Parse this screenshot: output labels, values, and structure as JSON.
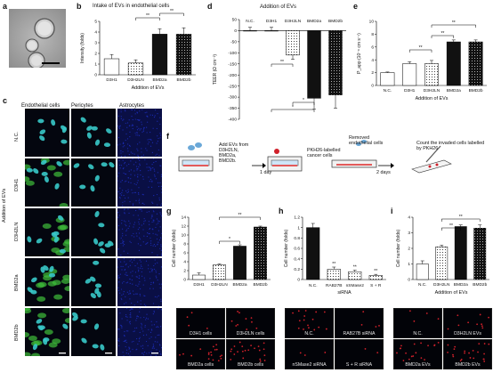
{
  "panels": {
    "a": {
      "label": "a"
    },
    "b": {
      "label": "b",
      "title": "Intake of EVs in endothelial cells"
    },
    "c": {
      "label": "c",
      "columns": [
        "Endothelial cells",
        "Pericytes",
        "Astrocytes"
      ],
      "rows": [
        "N.C.",
        "D3H1",
        "D3H2LN",
        "BMD2a",
        "BMD2b"
      ],
      "side_label": "Addition of EVs"
    },
    "d": {
      "label": "d",
      "title": "Addition of EVs"
    },
    "e": {
      "label": "e"
    },
    "f": {
      "label": "f",
      "step1": "Add EVs from D3H2LN, BMD2a, BMD2b.",
      "arrow1": "1 day",
      "step2": "PKH26-labelled cancer cells",
      "step3": "Removed endothelial cells",
      "arrow2": "2 days",
      "step4": "Count the invaded cells labelled by PKH26"
    },
    "g": {
      "label": "g",
      "images": [
        "D3H1 cells",
        "D3H2LN cells",
        "BMD2a cells",
        "BMD2b cells"
      ]
    },
    "h": {
      "label": "h",
      "images": [
        "N.C.",
        "RAB27B siRNA",
        "nSMase2 siRNA",
        "S + R siRNA"
      ]
    },
    "i": {
      "label": "i",
      "images": [
        "N.C.",
        "D3H2LN EVs",
        "BMD2a EVs",
        "BMD2b EVs"
      ]
    }
  },
  "colors": {
    "bar_black": "#111111",
    "bar_white": "#ffffff",
    "cell_cyan": "#39c9c9",
    "cell_green": "#3fbf3a",
    "astro_blue": "#1b2bb0",
    "pkh_red": "#d0202a"
  },
  "chart_data": [
    {
      "id": "b",
      "type": "bar",
      "categories": [
        "D3H1",
        "D3H2LN",
        "BMD2a",
        "BMD2b"
      ],
      "values": [
        1.5,
        1.1,
        3.8,
        3.8
      ],
      "errors": [
        0.4,
        0.3,
        0.5,
        0.6
      ],
      "ylabel": "Intensity (folds)",
      "xlabel": "Addition of EVs",
      "ylim": [
        0,
        5
      ],
      "yticks": [
        0,
        1,
        2,
        3,
        4,
        5
      ],
      "significance": [
        "**",
        "**"
      ]
    },
    {
      "id": "d",
      "type": "bar",
      "categories": [
        "N.C.",
        "D3H1",
        "D3H2LN",
        "BMD2a",
        "BMD2b"
      ],
      "values": [
        0,
        0,
        -110,
        -305,
        -290
      ],
      "errors": [
        15,
        15,
        20,
        50,
        60
      ],
      "ylabel": "TEER (Ω cm⁻²)",
      "ylim": [
        -400,
        50
      ],
      "yticks": [
        50,
        0,
        -50,
        -100,
        -150,
        -200,
        -250,
        -300,
        -350,
        -400
      ],
      "significance": [
        "**",
        "*",
        "*"
      ]
    },
    {
      "id": "e",
      "type": "bar",
      "categories": [
        "N.C.",
        "D3H1",
        "D3H2LN",
        "BMD2a",
        "BMD2b"
      ],
      "values": [
        2.0,
        3.4,
        3.4,
        6.8,
        6.8
      ],
      "errors": [
        0.1,
        0.3,
        0.5,
        0.3,
        0.3
      ],
      "ylabel": "P_app (10⁻⁶ cm s⁻¹)",
      "xlabel": "Addition of EVs",
      "ylim": [
        0,
        10
      ],
      "yticks": [
        0,
        2,
        4,
        6,
        8,
        10
      ],
      "significance": [
        "**",
        "**",
        "**"
      ]
    },
    {
      "id": "g",
      "type": "bar",
      "categories": [
        "D3H1",
        "D3H2LN",
        "BMD2a",
        "BMD2b"
      ],
      "values": [
        1.0,
        3.3,
        7.5,
        11.8
      ],
      "errors": [
        0.5,
        0.2,
        0.3,
        0.2
      ],
      "ylabel": "Cell number (folds)",
      "ylim": [
        0,
        14
      ],
      "yticks": [
        0,
        2,
        4,
        6,
        8,
        10,
        12,
        14
      ],
      "significance": [
        "*",
        "**"
      ]
    },
    {
      "id": "h",
      "type": "bar",
      "categories": [
        "N.C.",
        "RAB27B",
        "nSMase2",
        "S + R"
      ],
      "values": [
        1.0,
        0.2,
        0.15,
        0.08
      ],
      "errors": [
        0.08,
        0.04,
        0.03,
        0.02
      ],
      "ylabel": "Cell number (folds)",
      "xlabel": "siRNA",
      "ylim": [
        0,
        1.2
      ],
      "yticks": [
        0,
        0.2,
        0.4,
        0.6,
        0.8,
        1.0,
        1.2
      ],
      "significance": [
        "**",
        "**",
        "**"
      ]
    },
    {
      "id": "i",
      "type": "bar",
      "categories": [
        "N.C.",
        "D3H2LN",
        "BMD2a",
        "BMD2b"
      ],
      "values": [
        1.0,
        2.1,
        3.4,
        3.3
      ],
      "errors": [
        0.2,
        0.1,
        0.1,
        0.2
      ],
      "ylabel": "Cell number (folds)",
      "xlabel": "Addition of EVs",
      "ylim": [
        0,
        4
      ],
      "yticks": [
        0,
        1,
        2,
        3,
        4
      ],
      "significance": [
        "**",
        "**"
      ]
    }
  ]
}
